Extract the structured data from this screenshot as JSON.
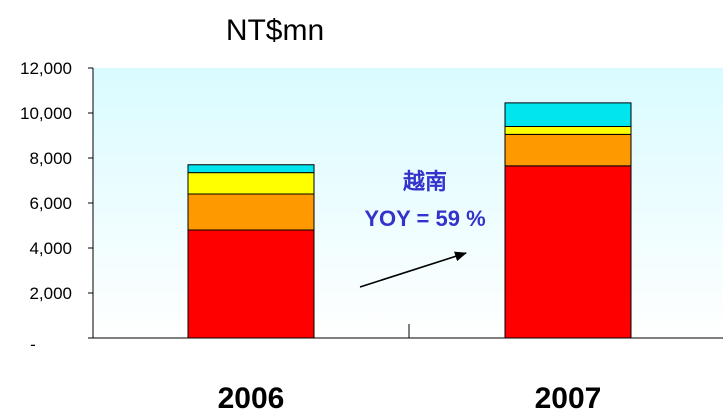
{
  "chart_data": {
    "type": "bar",
    "stacked": true,
    "title": "NT$mn",
    "categories": [
      "2006",
      "2007"
    ],
    "ylim": [
      0,
      12000
    ],
    "yticks": [
      {
        "value": 0,
        "label": "-"
      },
      {
        "value": 2000,
        "label": "2,000"
      },
      {
        "value": 4000,
        "label": "4,000"
      },
      {
        "value": 6000,
        "label": "6,000"
      },
      {
        "value": 8000,
        "label": "8,000"
      },
      {
        "value": 10000,
        "label": "10,000"
      },
      {
        "value": 12000,
        "label": "12,000"
      }
    ],
    "series": [
      {
        "color": "#ff0000",
        "values": [
          4800,
          7650
        ]
      },
      {
        "color": "#ff9900",
        "values": [
          1600,
          1400
        ]
      },
      {
        "color": "#ffff00",
        "values": [
          950,
          350
        ]
      },
      {
        "color": "#00e5ee",
        "values": [
          350,
          1050
        ]
      }
    ],
    "annotations": {
      "label": "越南",
      "yoy": "YOY = 59 %"
    },
    "grid": false,
    "colors": {
      "plot_bg_top": "#d9fbff",
      "plot_bg_bottom": "#ffffff",
      "annotation": "#3333cc"
    }
  }
}
